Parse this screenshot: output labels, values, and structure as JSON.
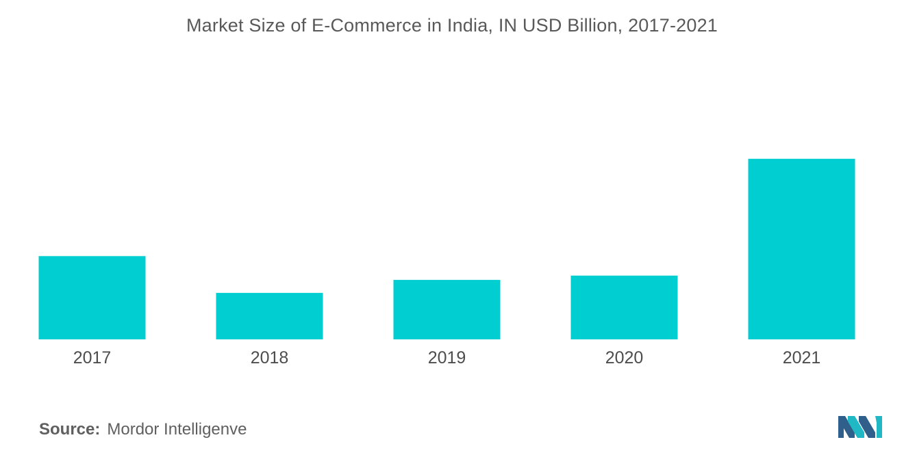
{
  "chart_data": {
    "type": "bar",
    "title": "Market Size of E-Commerce in India, IN USD Billion, 2017-2021",
    "categories": [
      "2017",
      "2018",
      "2019",
      "2020",
      "2021"
    ],
    "values": [
      38.5,
      21.5,
      27.5,
      29.5,
      83.5
    ],
    "ylim": [
      0,
      100
    ],
    "xlabel": "",
    "ylabel": "",
    "grid": false,
    "legend": "none",
    "bar_color": "#00ced1"
  },
  "footer": {
    "source_key": "Source:",
    "source_value": "Mordor Intelligenve"
  },
  "colors": {
    "bar": "#00ced1",
    "title": "#595959",
    "logo_dark": "#2f5f8a",
    "logo_teal": "#1fb8c4"
  }
}
